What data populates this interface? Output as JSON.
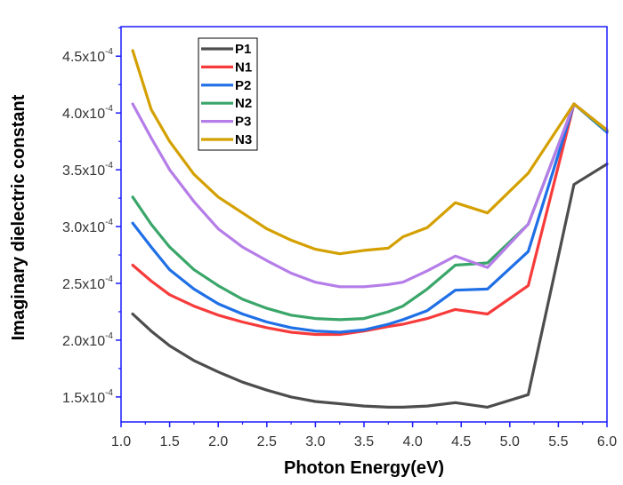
{
  "chart_data": {
    "type": "line",
    "title": "",
    "xlabel": "Photon Energy(eV)",
    "ylabel": "Imaginary dielectric constant",
    "xlim": [
      1.0,
      6.0
    ],
    "ylim": [
      0.000128,
      0.000476
    ],
    "y_unit_exponent": -4,
    "xticks": [
      1.0,
      1.5,
      2.0,
      2.5,
      3.0,
      3.5,
      4.0,
      4.5,
      5.0,
      5.5,
      6.0
    ],
    "xtick_labels": [
      "1.0",
      "1.5",
      "2.0",
      "2.5",
      "3.0",
      "3.5",
      "4.0",
      "4.5",
      "5.0",
      "5.5",
      "6.0"
    ],
    "yticks": [
      1.5,
      2.0,
      2.5,
      3.0,
      3.5,
      4.0,
      4.5
    ],
    "ytick_labels": [
      {
        "mantissa": "1.5x10",
        "exp": "-4"
      },
      {
        "mantissa": "2.0x10",
        "exp": "-4"
      },
      {
        "mantissa": "2.5x10",
        "exp": "-4"
      },
      {
        "mantissa": "3.0x10",
        "exp": "-4"
      },
      {
        "mantissa": "3.5x10",
        "exp": "-4"
      },
      {
        "mantissa": "4.0x10",
        "exp": "-4"
      },
      {
        "mantissa": "4.5x10",
        "exp": "-4"
      }
    ],
    "grid": false,
    "legend_position": "top-left",
    "x": [
      1.12,
      1.31,
      1.5,
      1.75,
      2.0,
      2.25,
      2.5,
      2.75,
      3.0,
      3.25,
      3.5,
      3.75,
      3.9,
      4.15,
      4.44,
      4.77,
      5.19,
      5.66,
      6.0
    ],
    "series": [
      {
        "name": "P1",
        "color": "#4d4d4d",
        "values": [
          2.23,
          2.08,
          1.95,
          1.82,
          1.72,
          1.63,
          1.56,
          1.5,
          1.46,
          1.44,
          1.42,
          1.41,
          1.41,
          1.42,
          1.45,
          1.41,
          1.52,
          3.37,
          3.55
        ]
      },
      {
        "name": "N1",
        "color": "#f73b3b",
        "values": [
          2.66,
          2.52,
          2.4,
          2.3,
          2.22,
          2.16,
          2.11,
          2.07,
          2.05,
          2.05,
          2.08,
          2.12,
          2.14,
          2.19,
          2.27,
          2.23,
          2.48,
          4.08,
          3.84
        ]
      },
      {
        "name": "P2",
        "color": "#1f6fe6",
        "values": [
          3.03,
          2.82,
          2.62,
          2.45,
          2.32,
          2.23,
          2.16,
          2.11,
          2.08,
          2.07,
          2.09,
          2.14,
          2.18,
          2.26,
          2.44,
          2.45,
          2.78,
          4.08,
          3.83
        ]
      },
      {
        "name": "N2",
        "color": "#3aa66a",
        "values": [
          3.26,
          3.02,
          2.82,
          2.62,
          2.48,
          2.36,
          2.28,
          2.22,
          2.19,
          2.18,
          2.19,
          2.25,
          2.3,
          2.45,
          2.66,
          2.68,
          3.02,
          4.08,
          3.84
        ]
      },
      {
        "name": "P3",
        "color": "#b57de8",
        "values": [
          4.08,
          3.78,
          3.5,
          3.22,
          2.98,
          2.82,
          2.7,
          2.59,
          2.51,
          2.47,
          2.47,
          2.49,
          2.51,
          2.61,
          2.74,
          2.64,
          3.02,
          4.08,
          3.85
        ]
      },
      {
        "name": "N3",
        "color": "#d4a000",
        "values": [
          4.55,
          4.03,
          3.75,
          3.46,
          3.26,
          3.12,
          2.98,
          2.88,
          2.8,
          2.76,
          2.79,
          2.81,
          2.91,
          2.99,
          3.21,
          3.12,
          3.47,
          4.08,
          3.85
        ]
      }
    ]
  },
  "style": {
    "axis_color": "#1a1aff",
    "tick_label_color": "#333333"
  }
}
